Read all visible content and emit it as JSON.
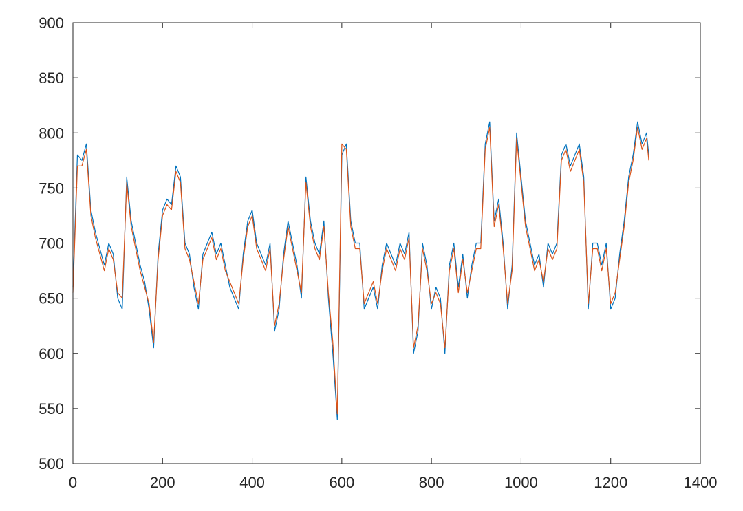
{
  "chart_data": {
    "type": "line",
    "title": "",
    "xlabel": "",
    "ylabel": "",
    "xlim": [
      0,
      1400
    ],
    "ylim": [
      500,
      900
    ],
    "xticks": [
      0,
      200,
      400,
      600,
      800,
      1000,
      1200,
      1400
    ],
    "yticks": [
      500,
      550,
      600,
      650,
      700,
      750,
      800,
      850,
      900
    ],
    "grid": false,
    "legend": "none",
    "series": [
      {
        "color": "#0072BD",
        "x": [
          0,
          10,
          20,
          30,
          40,
          50,
          60,
          70,
          80,
          90,
          100,
          110,
          120,
          130,
          140,
          150,
          160,
          170,
          180,
          190,
          200,
          210,
          220,
          230,
          240,
          250,
          260,
          270,
          280,
          290,
          300,
          310,
          320,
          330,
          340,
          350,
          360,
          370,
          380,
          390,
          400,
          410,
          420,
          430,
          440,
          450,
          460,
          470,
          480,
          490,
          500,
          510,
          520,
          530,
          540,
          550,
          560,
          570,
          580,
          590,
          600,
          610,
          620,
          630,
          640,
          650,
          660,
          670,
          680,
          690,
          700,
          710,
          720,
          730,
          740,
          750,
          760,
          770,
          780,
          790,
          800,
          810,
          820,
          830,
          840,
          850,
          860,
          870,
          880,
          890,
          900,
          910,
          920,
          930,
          940,
          950,
          960,
          970,
          980,
          990,
          1000,
          1010,
          1020,
          1030,
          1040,
          1050,
          1060,
          1070,
          1080,
          1090,
          1100,
          1110,
          1120,
          1130,
          1140,
          1150,
          1160,
          1170,
          1180,
          1190,
          1200,
          1210,
          1220,
          1230,
          1240,
          1250,
          1260,
          1270,
          1280,
          1285
        ],
        "y": [
          660,
          780,
          775,
          790,
          730,
          710,
          695,
          680,
          700,
          690,
          650,
          640,
          760,
          720,
          700,
          680,
          665,
          640,
          605,
          690,
          730,
          740,
          735,
          770,
          760,
          700,
          690,
          660,
          640,
          690,
          700,
          710,
          690,
          700,
          680,
          660,
          650,
          640,
          690,
          720,
          730,
          700,
          690,
          680,
          700,
          620,
          640,
          690,
          720,
          700,
          680,
          650,
          760,
          720,
          700,
          690,
          720,
          650,
          600,
          540,
          780,
          790,
          720,
          700,
          700,
          640,
          650,
          660,
          640,
          680,
          700,
          690,
          680,
          700,
          690,
          710,
          600,
          620,
          700,
          680,
          640,
          660,
          650,
          600,
          680,
          700,
          660,
          690,
          650,
          680,
          700,
          700,
          790,
          810,
          720,
          740,
          700,
          640,
          680,
          800,
          760,
          720,
          700,
          680,
          690,
          660,
          700,
          690,
          700,
          780,
          790,
          770,
          780,
          790,
          760,
          640,
          700,
          700,
          680,
          700,
          640,
          650,
          690,
          720,
          760,
          780,
          810,
          790,
          800,
          780
        ]
      },
      {
        "color": "#D95319",
        "x": [
          0,
          10,
          20,
          30,
          40,
          50,
          60,
          70,
          80,
          90,
          100,
          110,
          120,
          130,
          140,
          150,
          160,
          170,
          180,
          190,
          200,
          210,
          220,
          230,
          240,
          250,
          260,
          270,
          280,
          290,
          300,
          310,
          320,
          330,
          340,
          350,
          360,
          370,
          380,
          390,
          400,
          410,
          420,
          430,
          440,
          450,
          460,
          470,
          480,
          490,
          500,
          510,
          520,
          530,
          540,
          550,
          560,
          570,
          580,
          590,
          600,
          610,
          620,
          630,
          640,
          650,
          660,
          670,
          680,
          690,
          700,
          710,
          720,
          730,
          740,
          750,
          760,
          770,
          780,
          790,
          800,
          810,
          820,
          830,
          840,
          850,
          860,
          870,
          880,
          890,
          900,
          910,
          920,
          930,
          940,
          950,
          960,
          970,
          980,
          990,
          1000,
          1010,
          1020,
          1030,
          1040,
          1050,
          1060,
          1070,
          1080,
          1090,
          1100,
          1110,
          1120,
          1130,
          1140,
          1150,
          1160,
          1170,
          1180,
          1190,
          1200,
          1210,
          1220,
          1230,
          1240,
          1250,
          1260,
          1270,
          1280,
          1285
        ],
        "y": [
          655,
          770,
          770,
          785,
          725,
          705,
          690,
          675,
          695,
          685,
          655,
          650,
          755,
          715,
          695,
          675,
          660,
          645,
          610,
          685,
          725,
          735,
          730,
          765,
          755,
          695,
          685,
          665,
          645,
          685,
          695,
          705,
          685,
          695,
          675,
          665,
          655,
          645,
          685,
          715,
          725,
          695,
          685,
          675,
          695,
          625,
          645,
          685,
          715,
          695,
          675,
          655,
          755,
          715,
          695,
          685,
          715,
          655,
          610,
          545,
          790,
          785,
          715,
          695,
          695,
          645,
          655,
          665,
          645,
          675,
          695,
          685,
          675,
          695,
          685,
          705,
          605,
          625,
          695,
          675,
          645,
          655,
          645,
          605,
          675,
          695,
          655,
          685,
          655,
          675,
          695,
          695,
          785,
          805,
          715,
          735,
          695,
          645,
          675,
          795,
          755,
          715,
          695,
          675,
          685,
          665,
          695,
          685,
          695,
          775,
          785,
          765,
          775,
          785,
          755,
          645,
          695,
          695,
          675,
          695,
          645,
          655,
          685,
          715,
          755,
          775,
          805,
          785,
          795,
          775
        ]
      }
    ]
  }
}
